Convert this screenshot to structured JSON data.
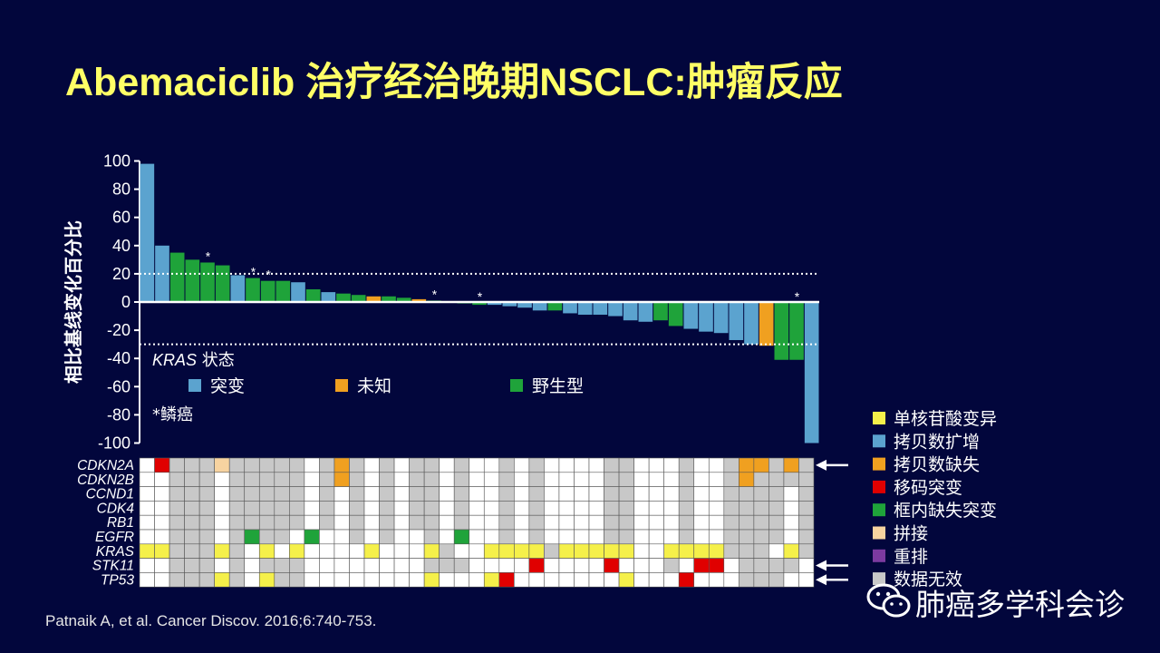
{
  "title": "Abemaciclib 治疗经治晚期NSCLC:肿瘤反应",
  "citation": "Patnaik A, et al. Cancer Discov. 2016;6:740-753.",
  "watermark": "肺癌多学科会诊",
  "colors": {
    "background": "#02063c",
    "title": "#ffff66",
    "mutant": "#5ba3cf",
    "unknown": "#f0a020",
    "wildtype": "#1fa33a",
    "snv": "#f5f04a",
    "amplification": "#5ba3cf",
    "deletion": "#f0a020",
    "frameshift": "#e00000",
    "inframe_deletion": "#1fa33a",
    "splice": "#f7d3a0",
    "rearrangement": "#7c3aa0",
    "no_data": "#c8c8c8",
    "none": "#ffffff"
  },
  "chart_data": {
    "type": "bar",
    "ylabel": "相比基线变化百分比",
    "ylim": [
      -100,
      100
    ],
    "yticks": [
      100,
      80,
      60,
      40,
      20,
      0,
      -20,
      -40,
      -60,
      -80,
      -100
    ],
    "reference_lines": [
      20,
      -30
    ],
    "kras_legend_title_italic": "KRAS",
    "kras_legend_title_rest": " 状态",
    "kras_legend": [
      {
        "key": "M",
        "label": "突变",
        "color": "#5ba3cf"
      },
      {
        "key": "U",
        "label": "未知",
        "color": "#f0a020"
      },
      {
        "key": "W",
        "label": "野生型",
        "color": "#1fa33a"
      }
    ],
    "footnote": "*鳞癌",
    "bars": [
      {
        "value": 98,
        "kras": "M",
        "sq": false
      },
      {
        "value": 40,
        "kras": "M",
        "sq": false
      },
      {
        "value": 35,
        "kras": "W",
        "sq": false
      },
      {
        "value": 30,
        "kras": "W",
        "sq": false
      },
      {
        "value": 28,
        "kras": "W",
        "sq": true
      },
      {
        "value": 26,
        "kras": "W",
        "sq": false
      },
      {
        "value": 19,
        "kras": "M",
        "sq": false
      },
      {
        "value": 17,
        "kras": "W",
        "sq": true
      },
      {
        "value": 15,
        "kras": "W",
        "sq": true
      },
      {
        "value": 15,
        "kras": "W",
        "sq": false
      },
      {
        "value": 14,
        "kras": "M",
        "sq": false
      },
      {
        "value": 9,
        "kras": "W",
        "sq": false
      },
      {
        "value": 7,
        "kras": "M",
        "sq": false
      },
      {
        "value": 6,
        "kras": "W",
        "sq": false
      },
      {
        "value": 5,
        "kras": "W",
        "sq": false
      },
      {
        "value": 4,
        "kras": "U",
        "sq": false
      },
      {
        "value": 4,
        "kras": "W",
        "sq": false
      },
      {
        "value": 3,
        "kras": "W",
        "sq": false
      },
      {
        "value": 2,
        "kras": "U",
        "sq": false
      },
      {
        "value": 1,
        "kras": "W",
        "sq": true
      },
      {
        "value": 0,
        "kras": "M",
        "sq": false
      },
      {
        "value": -1,
        "kras": "W",
        "sq": false
      },
      {
        "value": -2,
        "kras": "W",
        "sq": true
      },
      {
        "value": -2,
        "kras": "M",
        "sq": false
      },
      {
        "value": -3,
        "kras": "M",
        "sq": false
      },
      {
        "value": -4,
        "kras": "M",
        "sq": false
      },
      {
        "value": -6,
        "kras": "M",
        "sq": false
      },
      {
        "value": -6,
        "kras": "W",
        "sq": false
      },
      {
        "value": -8,
        "kras": "M",
        "sq": false
      },
      {
        "value": -9,
        "kras": "M",
        "sq": false
      },
      {
        "value": -9,
        "kras": "M",
        "sq": false
      },
      {
        "value": -10,
        "kras": "M",
        "sq": false
      },
      {
        "value": -13,
        "kras": "M",
        "sq": false
      },
      {
        "value": -14,
        "kras": "M",
        "sq": false
      },
      {
        "value": -13,
        "kras": "W",
        "sq": false
      },
      {
        "value": -17,
        "kras": "W",
        "sq": false
      },
      {
        "value": -19,
        "kras": "M",
        "sq": false
      },
      {
        "value": -21,
        "kras": "M",
        "sq": false
      },
      {
        "value": -22,
        "kras": "M",
        "sq": false
      },
      {
        "value": -27,
        "kras": "M",
        "sq": false
      },
      {
        "value": -30,
        "kras": "M",
        "sq": false
      },
      {
        "value": -31,
        "kras": "U",
        "sq": false
      },
      {
        "value": -41,
        "kras": "W",
        "sq": false
      },
      {
        "value": -41,
        "kras": "W",
        "sq": true
      },
      {
        "value": -100,
        "kras": "M",
        "sq": false
      }
    ],
    "genes": [
      "CDKN2A",
      "CDKN2B",
      "CCND1",
      "CDK4",
      "RB1",
      "EGFR",
      "KRAS",
      "STK11",
      "TP53"
    ],
    "gene_grid_legend": "s=单核苷酸变异 a=拷贝数扩增 d=拷贝数缺失 f=移码突变 i=框内缺失突变 p=拼接 r=重排 g=数据无效 w=无",
    "gene_grid": [
      "wfgggpgggggwgdgwgwggwgwwgwgwwwwggwwwgwwgddgdg",
      "wwgggwgggggwgdgwgwggwgwwgwgwwwwggwwwgwwgdgggg",
      "wwgggwgggggwgwgwgwggwgwwgwgwwwwggwwwgwwggggwg",
      "wwgggwgggggwgwgwgwggwgwwgwgwwwwggwwwgwwggggwg",
      "wwgggwgggggwgwgwgwggwgwwgwgwwwwggwwwgwwggggwg",
      "wwgggwgiggwiwwgwgwwgwiwwgwgwwwwggwwwgwwggggwg",
      "ssgggsgwswswwwwswwwsgwwssssgssssswwssssgggwsg",
      "wwgggwgwgggwwwwwwwwgggwwwwfwwwwfwwwgwffwggggw",
      "wwgggsgwsggwwwwwwwwswwwsfwwwwwwwswwwfwwwgggww"
    ],
    "genes_highlighted": [
      "CDKN2A",
      "STK11",
      "TP53"
    ],
    "mutation_legend": [
      {
        "key": "s",
        "label": "单核苷酸变异"
      },
      {
        "key": "a",
        "label": "拷贝数扩增"
      },
      {
        "key": "d",
        "label": "拷贝数缺失"
      },
      {
        "key": "f",
        "label": "移码突变"
      },
      {
        "key": "i",
        "label": "框内缺失突变"
      },
      {
        "key": "p",
        "label": "拼接"
      },
      {
        "key": "r",
        "label": "重排"
      },
      {
        "key": "g",
        "label": "数据无效"
      }
    ]
  }
}
